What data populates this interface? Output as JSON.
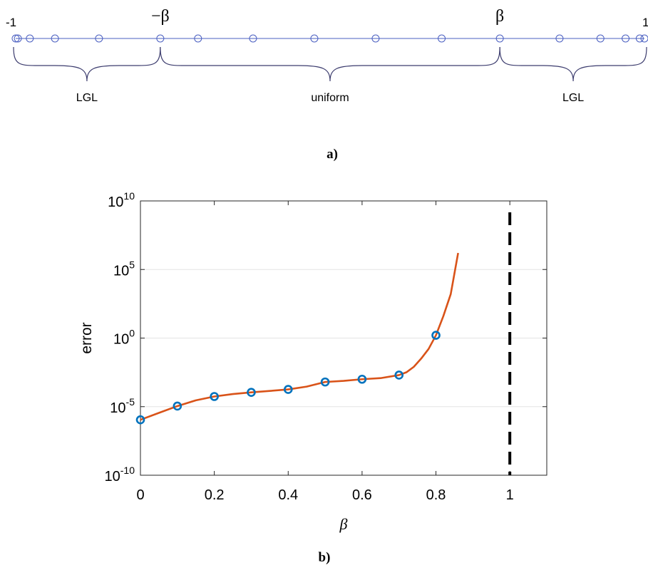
{
  "panel_a": {
    "left_end_label": "-1",
    "right_end_label": "1",
    "neg_beta_label": "−β",
    "beta_label": "β",
    "node_positions": [
      -1.0,
      -0.993,
      -0.955,
      -0.875,
      -0.735,
      -0.54,
      -0.42,
      -0.245,
      -0.05,
      0.145,
      0.355,
      0.54,
      0.73,
      0.86,
      0.94,
      0.985,
      1.0
    ],
    "beta": 0.54,
    "segments": [
      {
        "label": "LGL"
      },
      {
        "label": "uniform"
      },
      {
        "label": "LGL"
      }
    ],
    "caption": "a)",
    "color": "#4a5fc1",
    "brace_color": "#3c3c6e"
  },
  "chart_data": {
    "type": "line",
    "xlabel": "β",
    "ylabel": "error",
    "xlim": [
      0,
      1.1
    ],
    "ylim_log10": [
      -10,
      10
    ],
    "y_scale": "log",
    "x_ticks": [
      0,
      0.2,
      0.4,
      0.6,
      0.8,
      1
    ],
    "x_tick_labels": [
      "0",
      "0.2",
      "0.4",
      "0.6",
      "0.8",
      "1"
    ],
    "y_ticks_log10": [
      -10,
      -5,
      0,
      5,
      10
    ],
    "y_tick_base": "10",
    "y_tick_exponents": [
      "-10",
      "-5",
      "0",
      "5",
      "10"
    ],
    "grid": "horizontal",
    "series": [
      {
        "marker": "circle",
        "color": "#0072bd",
        "x": [
          0,
          0.1,
          0.2,
          0.3,
          0.4,
          0.5,
          0.6,
          0.7,
          0.8
        ],
        "y": [
          1.1e-06,
          1.1e-05,
          5.5e-05,
          0.00011,
          0.00018,
          0.00063,
          0.001,
          0.002,
          1.6
        ]
      },
      {
        "line": "solid",
        "color": "#d95319",
        "x": [
          0,
          0.05,
          0.1,
          0.15,
          0.2,
          0.25,
          0.3,
          0.35,
          0.4,
          0.45,
          0.5,
          0.55,
          0.6,
          0.65,
          0.7,
          0.72,
          0.74,
          0.76,
          0.78,
          0.8,
          0.82,
          0.84,
          0.86
        ],
        "y": [
          1.1e-06,
          3.5e-06,
          1.1e-05,
          2.9e-05,
          5.5e-05,
          8.3e-05,
          0.00011,
          0.00014,
          0.00018,
          0.00029,
          0.00063,
          0.00076,
          0.001,
          0.0012,
          0.002,
          0.0032,
          0.008,
          0.032,
          0.16,
          1.6,
          40.0,
          1600.0,
          1600000.0
        ]
      },
      {
        "line": "dashed",
        "color": "#000000",
        "x": [
          1,
          1
        ],
        "y": [
          1e-10,
          10000000000.0
        ]
      }
    ],
    "caption": "b)"
  }
}
